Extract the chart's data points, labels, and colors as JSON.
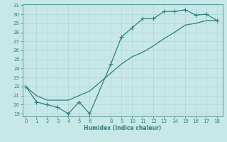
{
  "xlabel": "Humidex (Indice chaleur)",
  "bg_color": "#c8e8e8",
  "grid_color": "#b0d4d4",
  "line_color": "#2e7d7d",
  "x_marker": [
    0,
    1,
    2,
    3,
    4,
    5,
    6,
    8,
    9,
    10,
    11,
    12,
    13,
    14,
    15,
    16,
    17,
    18
  ],
  "y_marker": [
    22.0,
    20.3,
    20.0,
    19.7,
    19.0,
    20.3,
    19.0,
    24.5,
    27.5,
    28.5,
    29.5,
    29.5,
    30.3,
    30.3,
    30.5,
    29.9,
    30.0,
    29.3
  ],
  "x_smooth": [
    0,
    1,
    2,
    3,
    4,
    5,
    6,
    8,
    9,
    10,
    11,
    12,
    13,
    14,
    15,
    16,
    17,
    18
  ],
  "y_smooth": [
    22.0,
    21.0,
    20.5,
    20.5,
    20.5,
    21.0,
    21.5,
    23.5,
    24.5,
    25.3,
    25.8,
    26.5,
    27.3,
    28.0,
    28.8,
    29.0,
    29.3,
    29.3
  ],
  "ylim_min": 19,
  "ylim_max": 31,
  "xlim_min": -0.3,
  "xlim_max": 18.5,
  "yticks": [
    19,
    20,
    21,
    22,
    23,
    24,
    25,
    26,
    27,
    28,
    29,
    30,
    31
  ],
  "xticks": [
    0,
    1,
    2,
    3,
    4,
    5,
    6,
    8,
    9,
    10,
    11,
    12,
    13,
    14,
    15,
    16,
    17,
    18
  ]
}
